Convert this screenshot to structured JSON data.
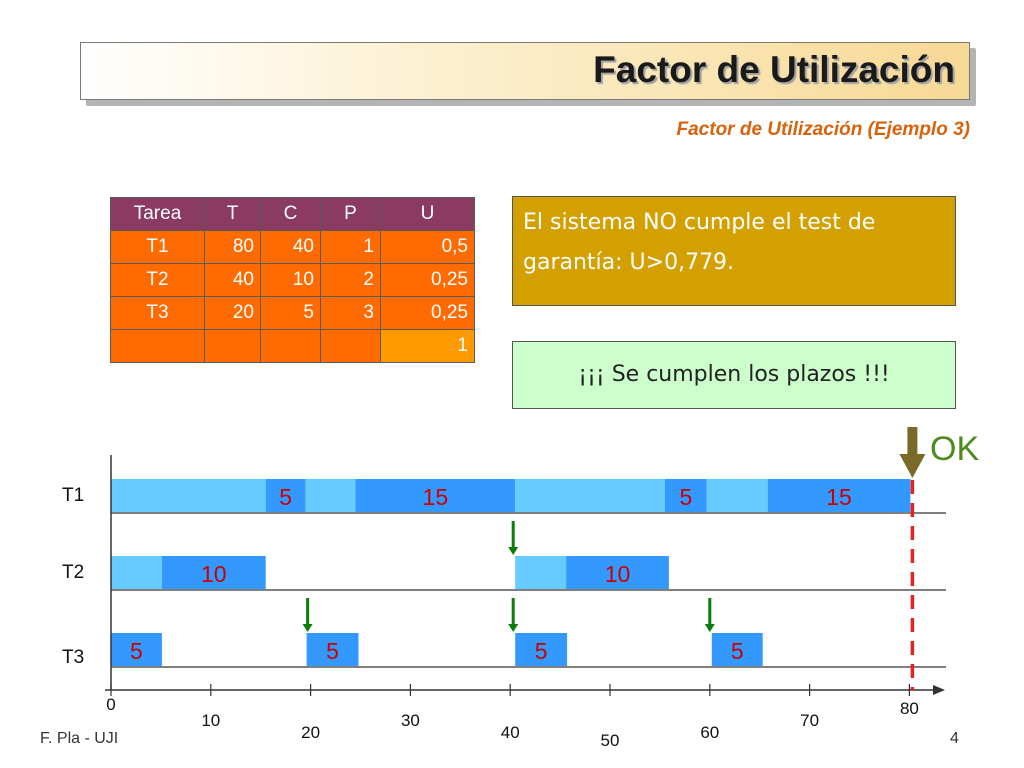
{
  "title": "Factor de Utilización",
  "subtitle": "Factor de Utilización (Ejemplo 3)",
  "table": {
    "headers": [
      "Tarea",
      "T",
      "C",
      "P",
      "U"
    ],
    "rows": [
      [
        "T1",
        "80",
        "40",
        "1",
        "0,5"
      ],
      [
        "T2",
        "40",
        "10",
        "2",
        "0,25"
      ],
      [
        "T3",
        "20",
        "5",
        "3",
        "0,25"
      ],
      [
        "",
        "",
        "",
        "",
        "1"
      ]
    ]
  },
  "message_fail": "El sistema NO cumple el test de garantía: U>0,779.",
  "message_ok": "¡¡¡ Se cumplen los plazos !!!",
  "ok_label": "OK",
  "gantt": {
    "tasks": [
      "T1",
      "T2",
      "T3"
    ],
    "ticks": [
      0,
      10,
      20,
      30,
      40,
      50,
      60,
      70,
      80
    ],
    "colors": {
      "waiting": "#66ccff",
      "running": "#3399ff",
      "label": "#cc0000",
      "arrow": "#0a7d0a",
      "deadline": "#e52222",
      "ok_arrow": "#7a6a2a"
    },
    "segments": [
      {
        "task": 0,
        "start": 0,
        "end": 15.5,
        "kind": "waiting",
        "label": ""
      },
      {
        "task": 0,
        "start": 15.5,
        "end": 19.5,
        "kind": "running",
        "label": "5"
      },
      {
        "task": 0,
        "start": 19.5,
        "end": 24.5,
        "kind": "waiting",
        "label": ""
      },
      {
        "task": 0,
        "start": 24.5,
        "end": 40.5,
        "kind": "running",
        "label": "15"
      },
      {
        "task": 0,
        "start": 40.5,
        "end": 55.5,
        "kind": "waiting",
        "label": ""
      },
      {
        "task": 0,
        "start": 55.5,
        "end": 59.7,
        "kind": "running",
        "label": "5"
      },
      {
        "task": 0,
        "start": 59.7,
        "end": 65.8,
        "kind": "waiting",
        "label": ""
      },
      {
        "task": 0,
        "start": 65.8,
        "end": 80.1,
        "kind": "running",
        "label": "15"
      },
      {
        "task": 1,
        "start": 0,
        "end": 5.1,
        "kind": "waiting",
        "label": ""
      },
      {
        "task": 1,
        "start": 5.1,
        "end": 15.5,
        "kind": "running",
        "label": "10"
      },
      {
        "task": 1,
        "start": 40.5,
        "end": 45.6,
        "kind": "waiting",
        "label": ""
      },
      {
        "task": 1,
        "start": 45.6,
        "end": 55.9,
        "kind": "running",
        "label": "10"
      },
      {
        "task": 2,
        "start": 0,
        "end": 5.1,
        "kind": "running",
        "label": "5"
      },
      {
        "task": 2,
        "start": 19.6,
        "end": 24.8,
        "kind": "running",
        "label": "5"
      },
      {
        "task": 2,
        "start": 40.5,
        "end": 45.7,
        "kind": "running",
        "label": "5"
      },
      {
        "task": 2,
        "start": 60.2,
        "end": 65.3,
        "kind": "running",
        "label": "5"
      }
    ],
    "release_arrows": [
      {
        "task": 1,
        "time": 40.3
      },
      {
        "task": 2,
        "time": 19.7
      },
      {
        "task": 2,
        "time": 40.3
      },
      {
        "task": 2,
        "time": 60.0
      }
    ],
    "deadline_time": 80.3
  },
  "footer": {
    "author": "F. Pla - UJI",
    "page": "4"
  }
}
